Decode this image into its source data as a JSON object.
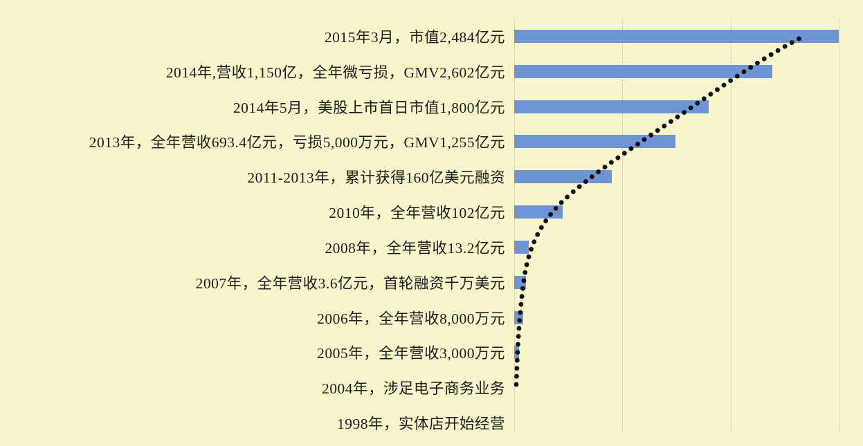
{
  "chart_data": {
    "type": "bar",
    "orientation": "horizontal",
    "title": "",
    "xlabel": "",
    "ylabel": "",
    "legend": "none",
    "grid": "vertical gridlines, 4 lines evenly spaced, no axis tick labels",
    "categories": [
      "2015年3月，市值2,484亿元",
      "2014年,营收1,150亿，全年微亏损，GMV2,602亿元",
      "2014年5月，美股上市首日市值1,800亿元",
      "2013年，全年营收693.4亿元，亏损5,000万元，GMV1,255亿元",
      "2011-2013年，累计获得160亿美元融资",
      "2010年，全年营收102亿元",
      "2008年，全年营收13.2亿元",
      "2007年，全年营收3.6亿元，首轮融资千万美元",
      "2006年，全年营收8,000万元",
      "2005年，全年营收3,000万元",
      "2004年，涉足电子商务业务",
      "1998年，实体店开始经营"
    ],
    "values_pct_of_max": [
      100,
      79.5,
      60,
      49.7,
      30,
      15,
      4.5,
      3.6,
      2.8,
      1.5,
      0,
      0
    ],
    "overlay": {
      "type": "dotted-curve",
      "description": "black dotted exponential growth curve rising from the 2004 row at the axis to the tip area of the 2015 bar"
    }
  },
  "colors": {
    "background": "#f8f4cb",
    "bar": "#6e94d5",
    "gridline": "#b9bcb2",
    "curve": "#111111",
    "text": "#1c1c1c"
  }
}
